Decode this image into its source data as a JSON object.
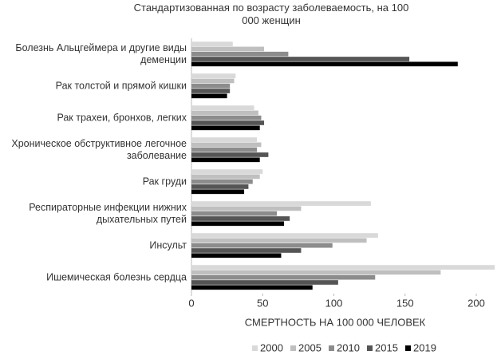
{
  "chart_data": {
    "type": "grouped-hbar",
    "title": "Стандартизованная по возрасту заболеваемость, на 100 000 женщин",
    "x_label": "СМЕРТНОСТЬ НА 100 000 ЧЕЛОВЕК",
    "categories": [
      "Болезнь Альцгеймера и другие виды деменции",
      "Рак толстой и прямой кишки",
      "Рак трахеи, бронхов, легких",
      "Хроническое обструктивное легочное заболевание",
      "Рак груди",
      "Респираторные инфекции нижних дыхательных путей",
      "Инсульт",
      "Ишемическая болезнь сердца"
    ],
    "series": [
      {
        "name": "2000",
        "color": "#d9d9d9",
        "values": [
          29,
          31,
          44,
          46,
          50,
          126,
          131,
          213
        ]
      },
      {
        "name": "2005",
        "color": "#bfbfbf",
        "values": [
          51,
          30,
          47,
          49,
          48,
          77,
          123,
          175
        ]
      },
      {
        "name": "2010",
        "color": "#8c8c8c",
        "values": [
          68,
          27,
          49,
          46,
          43,
          60,
          99,
          129
        ]
      },
      {
        "name": "2015",
        "color": "#555555",
        "values": [
          153,
          27,
          51,
          54,
          40,
          69,
          77,
          103
        ]
      },
      {
        "name": "2019",
        "color": "#000000",
        "values": [
          187,
          25,
          48,
          48,
          37,
          65,
          63,
          85
        ]
      }
    ],
    "xlim": [
      0,
      214
    ],
    "xticks": [
      0,
      50,
      100,
      150,
      200
    ]
  }
}
